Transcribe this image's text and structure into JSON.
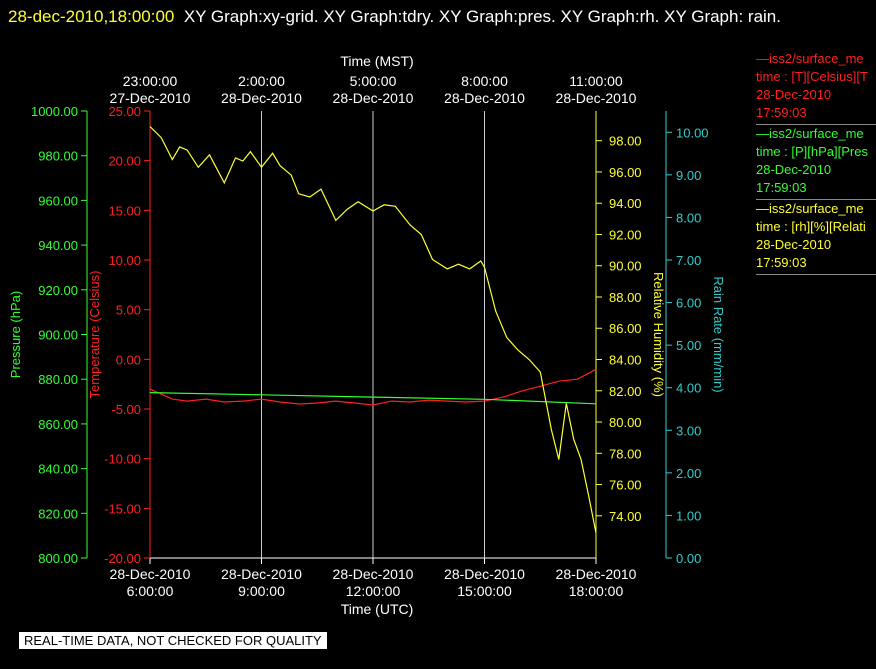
{
  "header": {
    "timestamp": "28-dec-2010,18:00:00",
    "graphs": "XY Graph:xy-grid.  XY Graph:tdry.  XY Graph:pres.  XY Graph:rh.  XY Graph: rain."
  },
  "footer": "REAL-TIME DATA, NOT CHECKED FOR QUALITY",
  "legend": [
    {
      "lines": [
        "—iss2/surface_me",
        "time : [T][Celsius][T",
        "28-Dec-2010",
        "17:59:03"
      ],
      "color": "#ff2020"
    },
    {
      "lines": [
        "—iss2/surface_me",
        "time : [P][hPa][Pres",
        "28-Dec-2010",
        "17:59:03"
      ],
      "color": "#33ff33"
    },
    {
      "lines": [
        "—iss2/surface_me",
        "time : [rh][%][Relati",
        "28-Dec-2010",
        "17:59:03"
      ],
      "color": "#ffff33"
    }
  ],
  "chart_data": {
    "type": "line",
    "x_top_label": "Time (MST)",
    "x_bottom_label": "Time (UTC)",
    "x_range_hours": [
      0,
      12
    ],
    "top_ticks": [
      {
        "h": 0,
        "t": "23:00:00",
        "d": "27-Dec-2010"
      },
      {
        "h": 3,
        "t": "2:00:00",
        "d": "28-Dec-2010"
      },
      {
        "h": 6,
        "t": "5:00:00",
        "d": "28-Dec-2010"
      },
      {
        "h": 9,
        "t": "8:00:00",
        "d": "28-Dec-2010"
      },
      {
        "h": 12,
        "t": "11:00:00",
        "d": "28-Dec-2010"
      }
    ],
    "bottom_ticks": [
      {
        "h": 0,
        "d": "28-Dec-2010",
        "t": "6:00:00"
      },
      {
        "h": 3,
        "d": "28-Dec-2010",
        "t": "9:00:00"
      },
      {
        "h": 6,
        "d": "28-Dec-2010",
        "t": "12:00:00"
      },
      {
        "h": 9,
        "d": "28-Dec-2010",
        "t": "15:00:00"
      },
      {
        "h": 12,
        "d": "28-Dec-2010",
        "t": "18:00:00"
      }
    ],
    "grid": "vertical",
    "axes": {
      "pressure": {
        "label": "Pressure (hPa)",
        "range": [
          800,
          1000
        ],
        "ticks": [
          "1000.00",
          "980.00",
          "960.00",
          "940.00",
          "920.00",
          "900.00",
          "880.00",
          "860.00",
          "840.00",
          "820.00",
          "800.00"
        ],
        "color": "#33ff33"
      },
      "temperature": {
        "label": "Temperature (Celsius)",
        "range": [
          -20,
          25
        ],
        "ticks": [
          "25.00",
          "20.00",
          "15.00",
          "10.00",
          "5.00",
          "0.00",
          "-5.00",
          "-10.00",
          "-15.00",
          "-20.00"
        ],
        "color": "#ff2020"
      },
      "humidity": {
        "label": "Relative Humidity (%)",
        "range": [
          71.3,
          99.9
        ],
        "ticks": [
          "98.00",
          "96.00",
          "94.00",
          "92.00",
          "90.00",
          "88.00",
          "86.00",
          "84.00",
          "82.00",
          "80.00",
          "78.00",
          "76.00",
          "74.00"
        ],
        "color": "#ffff33"
      },
      "rain": {
        "label": "Rain Rate (mm/min)",
        "range": [
          0,
          10.5
        ],
        "ticks": [
          "10.00",
          "9.00",
          "8.00",
          "7.00",
          "6.00",
          "5.00",
          "4.00",
          "3.00",
          "2.00",
          "1.00",
          "0.00"
        ],
        "color": "#33cccc"
      }
    },
    "series": [
      {
        "name": "iss2/surface_me T",
        "axis": "temperature",
        "color": "#ff2020",
        "x": [
          0,
          0.3,
          0.6,
          1,
          1.5,
          2,
          2.5,
          3,
          3.5,
          4,
          4.5,
          5,
          5.5,
          6,
          6.5,
          7,
          7.5,
          8,
          8.5,
          9,
          9.5,
          10,
          10.5,
          11,
          11.5,
          12
        ],
        "y": [
          -3.0,
          -3.5,
          -4.0,
          -4.2,
          -4.0,
          -4.3,
          -4.2,
          -4.0,
          -4.3,
          -4.5,
          -4.4,
          -4.2,
          -4.4,
          -4.6,
          -4.2,
          -4.3,
          -4.1,
          -4.2,
          -4.3,
          -4.2,
          -3.8,
          -3.2,
          -2.7,
          -2.2,
          -2.0,
          -1.0
        ]
      },
      {
        "name": "iss2/surface_me P",
        "axis": "pressure",
        "color": "#33ff33",
        "x": [
          0,
          3,
          6,
          9,
          12
        ],
        "y": [
          874,
          873,
          872,
          871,
          869
        ]
      },
      {
        "name": "iss2/surface_me rh",
        "axis": "humidity",
        "color": "#ffff33",
        "x": [
          0,
          0.3,
          0.6,
          0.8,
          1.0,
          1.3,
          1.6,
          2.0,
          2.3,
          2.5,
          2.7,
          3.0,
          3.3,
          3.5,
          3.8,
          4.0,
          4.3,
          4.6,
          5.0,
          5.3,
          5.6,
          6.0,
          6.3,
          6.6,
          7.0,
          7.3,
          7.6,
          8.0,
          8.3,
          8.6,
          8.9,
          9.0,
          9.3,
          9.6,
          9.9,
          10.2,
          10.5,
          10.8,
          11.0,
          11.2,
          11.4,
          11.6,
          11.8,
          12.0
        ],
        "y": [
          98.9,
          98.2,
          96.8,
          97.6,
          97.4,
          96.3,
          97.1,
          95.3,
          96.9,
          96.7,
          97.3,
          96.3,
          97.2,
          96.4,
          95.8,
          94.6,
          94.4,
          94.9,
          92.9,
          93.6,
          94.1,
          93.5,
          93.9,
          93.8,
          92.6,
          92.0,
          90.4,
          89.8,
          90.1,
          89.8,
          90.3,
          89.9,
          87.1,
          85.4,
          84.6,
          84.0,
          83.2,
          79.5,
          77.6,
          81.2,
          78.9,
          77.6,
          75.3,
          72.9
        ]
      }
    ]
  }
}
